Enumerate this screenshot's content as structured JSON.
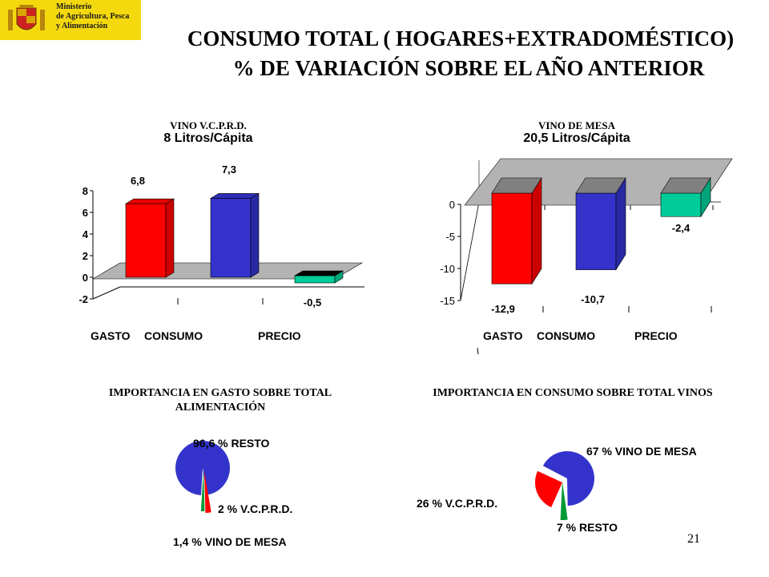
{
  "header": {
    "ministry": [
      "Ministerio",
      "de Agricultura, Pesca",
      "y Alimentación"
    ],
    "title_line1": "CONSUMO TOTAL ( HOGARES+EXTRADOMÉSTICO)",
    "title_line2": "% DE VARIACIÓN SOBRE EL AÑO ANTERIOR"
  },
  "page_number": "21",
  "colors": {
    "gasto": "#ff0000",
    "consumo": "#3333cc",
    "precio_pos": "#00cc99",
    "floor": "#b3b3b3",
    "resto": "#3333cc",
    "vcprd": "#ff0000",
    "mesa": "#009933"
  },
  "chart_data": [
    {
      "type": "bar",
      "title": "VINO V.C.P.R.D.",
      "subtitle": "8 Litros/Cápita",
      "categories": [
        "GASTO",
        "CONSUMO",
        "PRECIO"
      ],
      "values": [
        6.8,
        7.3,
        -0.5
      ],
      "value_labels": [
        "6,8",
        "7,3",
        "-0,5"
      ],
      "yticks": [
        "8",
        "6",
        "4",
        "2",
        "0",
        "-2"
      ],
      "ylim": [
        -2,
        8
      ]
    },
    {
      "type": "bar",
      "title": "VINO DE MESA",
      "subtitle": "20,5 Litros/Cápita",
      "categories": [
        "GASTO",
        "CONSUMO",
        "PRECIO"
      ],
      "values": [
        -12.9,
        -10.7,
        -2.4
      ],
      "value_labels": [
        "-12,9",
        "-10,7",
        "-2,4"
      ],
      "yticks": [
        "0",
        "-5",
        "-10",
        "-15"
      ],
      "ylim": [
        -15,
        0
      ]
    },
    {
      "type": "pie",
      "title": "IMPORTANCIA EN GASTO SOBRE TOTAL ALIMENTACIÓN",
      "labels": [
        "96,6 % RESTO",
        "2 % V.C.P.R.D.",
        "1,4 % VINO DE MESA"
      ],
      "values": [
        96.6,
        2,
        1.4
      ]
    },
    {
      "type": "pie",
      "title": "IMPORTANCIA EN CONSUMO SOBRE TOTAL VINOS",
      "labels": [
        "67 % VINO DE MESA",
        "26 % V.C.P.R.D.",
        "7 % RESTO"
      ],
      "values": [
        67,
        26,
        7
      ]
    }
  ]
}
